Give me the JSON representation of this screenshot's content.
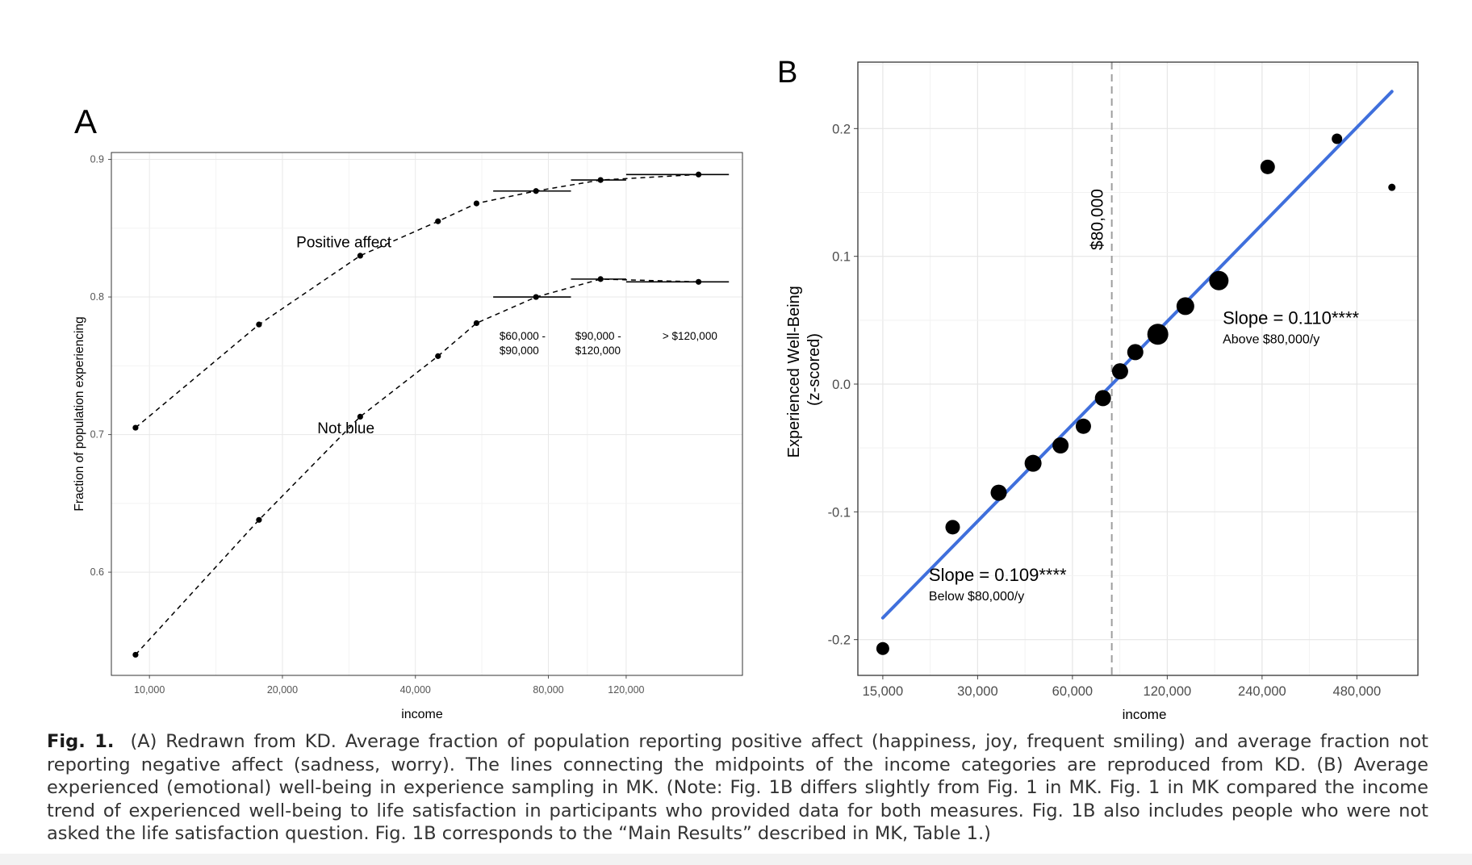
{
  "chart_data": [
    {
      "id": "A",
      "panel_label": "A",
      "type": "line",
      "x_scale": "log",
      "xlabel": "income",
      "ylabel": "Fraction of population experiencing",
      "xlim": [
        8200,
        220000
      ],
      "ylim": [
        0.525,
        0.905
      ],
      "xticks": [
        {
          "value": 10000,
          "label": "10,000"
        },
        {
          "value": 20000,
          "label": "20,000"
        },
        {
          "value": 40000,
          "label": "40,000"
        },
        {
          "value": 80000,
          "label": "80,000"
        },
        {
          "value": 120000,
          "label": "120,000"
        }
      ],
      "yticks": [
        {
          "value": 0.6,
          "label": "0.6"
        },
        {
          "value": 0.7,
          "label": "0.7"
        },
        {
          "value": 0.8,
          "label": "0.8"
        },
        {
          "value": 0.9,
          "label": "0.9"
        }
      ],
      "series": [
        {
          "name": "Positive affect",
          "label_anchor": [
            21500,
            0.836
          ],
          "x": [
            9300,
            17700,
            30000,
            45000,
            55000,
            75000,
            105000,
            175000
          ],
          "y": [
            0.705,
            0.78,
            0.83,
            0.855,
            0.868,
            0.877,
            0.885,
            0.889
          ]
        },
        {
          "name": "Not blue",
          "label_anchor": [
            24000,
            0.701
          ],
          "x": [
            9300,
            17700,
            30000,
            45000,
            55000,
            75000,
            105000,
            175000
          ],
          "y": [
            0.54,
            0.638,
            0.713,
            0.757,
            0.781,
            0.8,
            0.813,
            0.811
          ]
        }
      ],
      "range_bars": [
        {
          "series": 0,
          "x0": 60000,
          "x1": 90000,
          "y": 0.877
        },
        {
          "series": 0,
          "x0": 90000,
          "x1": 120000,
          "y": 0.885
        },
        {
          "series": 0,
          "x0": 120000,
          "x1": 205000,
          "y": 0.889
        },
        {
          "series": 1,
          "x0": 60000,
          "x1": 90000,
          "y": 0.8
        },
        {
          "series": 1,
          "x0": 90000,
          "x1": 120000,
          "y": 0.813
        },
        {
          "series": 1,
          "x0": 120000,
          "x1": 205000,
          "y": 0.811
        }
      ],
      "annotations": [
        {
          "lines": [
            "$60,000 -",
            "$90,000"
          ],
          "x": 62000,
          "y": 0.769
        },
        {
          "lines": [
            "$90,000 -",
            "$120,000"
          ],
          "x": 92000,
          "y": 0.769
        },
        {
          "lines": [
            "> $120,000"
          ],
          "x": 145000,
          "y": 0.769
        }
      ]
    },
    {
      "id": "B",
      "panel_label": "B",
      "type": "scatter",
      "x_scale": "log",
      "xlabel": "income",
      "ylabel": [
        "Experienced Well-Being",
        "(z-scored)"
      ],
      "xlim": [
        12500,
        750000
      ],
      "ylim": [
        -0.228,
        0.252
      ],
      "xticks": [
        {
          "value": 15000,
          "label": "15,000"
        },
        {
          "value": 30000,
          "label": "30,000"
        },
        {
          "value": 60000,
          "label": "60,000"
        },
        {
          "value": 120000,
          "label": "120,000"
        },
        {
          "value": 240000,
          "label": "240,000"
        },
        {
          "value": 480000,
          "label": "480,000"
        }
      ],
      "yticks": [
        {
          "value": -0.2,
          "label": "-0.2"
        },
        {
          "value": -0.1,
          "label": "-0.1"
        },
        {
          "value": 0.0,
          "label": "0.0"
        },
        {
          "value": 0.1,
          "label": "0.1"
        },
        {
          "value": 0.2,
          "label": "0.2"
        }
      ],
      "points": [
        {
          "x": 15000,
          "y": -0.207,
          "size": 8
        },
        {
          "x": 25000,
          "y": -0.112,
          "size": 9
        },
        {
          "x": 35000,
          "y": -0.085,
          "size": 10
        },
        {
          "x": 45000,
          "y": -0.062,
          "size": 10.5
        },
        {
          "x": 55000,
          "y": -0.048,
          "size": 10
        },
        {
          "x": 65000,
          "y": -0.033,
          "size": 9.5
        },
        {
          "x": 75000,
          "y": -0.011,
          "size": 10
        },
        {
          "x": 85000,
          "y": 0.01,
          "size": 10
        },
        {
          "x": 95000,
          "y": 0.025,
          "size": 10
        },
        {
          "x": 112000,
          "y": 0.039,
          "size": 13
        },
        {
          "x": 137000,
          "y": 0.061,
          "size": 11
        },
        {
          "x": 175000,
          "y": 0.081,
          "size": 12
        },
        {
          "x": 250000,
          "y": 0.17,
          "size": 9
        },
        {
          "x": 415000,
          "y": 0.192,
          "size": 6.5
        },
        {
          "x": 620000,
          "y": 0.154,
          "size": 4.5
        }
      ],
      "threshold": {
        "x": 80000,
        "label": "$80,000"
      },
      "fit_lines": [
        {
          "x0": 15000,
          "y0": -0.183,
          "x1": 84000,
          "y1": 0.005
        },
        {
          "x0": 84000,
          "y0": 0.01,
          "x1": 620000,
          "y1": 0.229
        }
      ],
      "slope_labels": [
        {
          "main": "Slope = 0.109****",
          "sub": "Below $80,000/y",
          "x": 21000,
          "y": -0.154
        },
        {
          "main": "Slope = 0.110****",
          "sub": "Above $80,000/y",
          "x": 180000,
          "y": 0.047
        }
      ],
      "colors": {
        "fit": "#3f6fdc",
        "threshold": "#9e9e9e",
        "points": "#000000"
      }
    }
  ],
  "caption": {
    "label": "Fig. 1.",
    "text": "(A) Redrawn from KD. Average fraction of population reporting positive affect (happiness, joy, frequent smiling) and average fraction not reporting negative affect (sadness, worry). The lines connecting the midpoints of the income categories are reproduced from KD. (B) Average experienced (emotional) well-being in experience sampling in MK. (Note: Fig. 1B differs slightly from Fig. 1 in MK. Fig. 1 in MK compared the income trend of experienced well-being to life satisfaction in participants who provided data for both measures. Fig. 1B also includes people who were not asked the life satisfaction question. Fig. 1B corresponds to the “Main Results” described in MK, Table 1.)"
  }
}
